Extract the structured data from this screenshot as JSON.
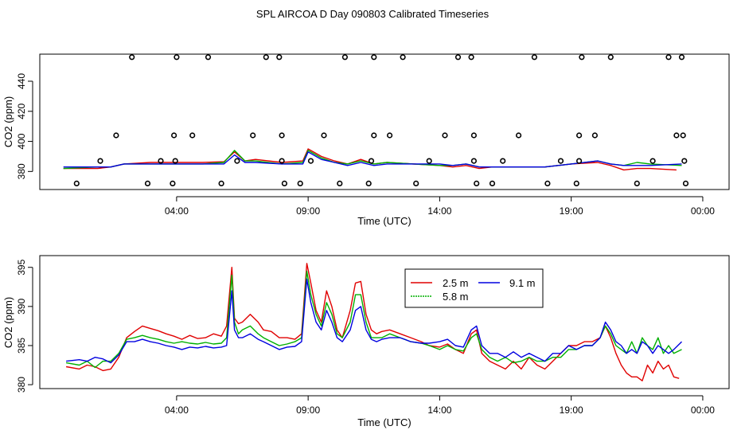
{
  "page_title": "SPL AIRCOA D  Day 090803  Calibrated Timeseries",
  "colors": {
    "series_2_5": "#e00000",
    "series_5_8": "#00b000",
    "series_9_1": "#0000e0",
    "axis": "#000000"
  },
  "chart_data": [
    {
      "type": "scatter+line",
      "title": "SPL AIRCOA D  Day 090803  Calibrated Timeseries",
      "xlabel": "Time (UTC)",
      "ylabel": "CO2 (ppm)",
      "xlim": [
        -1.2,
        25.0
      ],
      "ylim": [
        368,
        458
      ],
      "x_ticks": [
        4,
        9,
        14,
        19,
        24
      ],
      "x_tick_labels": [
        "04:00",
        "09:00",
        "14:00",
        "19:00",
        "00:00"
      ],
      "y_ticks": [
        380,
        400,
        420,
        440
      ],
      "y_tick_labels": [
        "380",
        "400",
        "420",
        "440"
      ],
      "points": [
        [
          0.2,
          372
        ],
        [
          1.1,
          387
        ],
        [
          1.7,
          404
        ],
        [
          2.3,
          456
        ],
        [
          2.9,
          372
        ],
        [
          3.4,
          387
        ],
        [
          3.85,
          372
        ],
        [
          3.9,
          404
        ],
        [
          3.95,
          387
        ],
        [
          4.0,
          456
        ],
        [
          4.6,
          404
        ],
        [
          5.2,
          456
        ],
        [
          5.7,
          372
        ],
        [
          6.3,
          387
        ],
        [
          6.9,
          404
        ],
        [
          7.4,
          456
        ],
        [
          7.9,
          456
        ],
        [
          8.0,
          404
        ],
        [
          8.0,
          387
        ],
        [
          8.1,
          372
        ],
        [
          8.7,
          372
        ],
        [
          9.1,
          387
        ],
        [
          9.6,
          404
        ],
        [
          10.2,
          372
        ],
        [
          10.4,
          456
        ],
        [
          11.3,
          372
        ],
        [
          11.4,
          387
        ],
        [
          11.5,
          456
        ],
        [
          11.5,
          404
        ],
        [
          12.1,
          404
        ],
        [
          12.6,
          456
        ],
        [
          13.1,
          372
        ],
        [
          13.6,
          387
        ],
        [
          14.2,
          404
        ],
        [
          14.7,
          456
        ],
        [
          15.2,
          456
        ],
        [
          15.3,
          404
        ],
        [
          15.3,
          387
        ],
        [
          15.4,
          372
        ],
        [
          16.0,
          372
        ],
        [
          16.4,
          387
        ],
        [
          17.0,
          404
        ],
        [
          17.6,
          456
        ],
        [
          18.1,
          372
        ],
        [
          18.6,
          387
        ],
        [
          19.2,
          372
        ],
        [
          19.3,
          387
        ],
        [
          19.3,
          404
        ],
        [
          19.4,
          456
        ],
        [
          19.9,
          404
        ],
        [
          20.5,
          456
        ],
        [
          21.5,
          372
        ],
        [
          22.1,
          387
        ],
        [
          22.7,
          456
        ],
        [
          23.0,
          404
        ],
        [
          23.2,
          456
        ],
        [
          23.25,
          404
        ],
        [
          23.3,
          387
        ],
        [
          23.35,
          372
        ]
      ],
      "series": [
        {
          "name": "2.5 m",
          "color": "#e00000",
          "x": [
            -0.3,
            1,
            1.5,
            2,
            3,
            4,
            5,
            5.8,
            6.2,
            6.6,
            7,
            8,
            8.8,
            9,
            9.5,
            10,
            10.5,
            11,
            11.5,
            12,
            13,
            14,
            14.5,
            15,
            15.5,
            16,
            17,
            18,
            19,
            20,
            20.5,
            21,
            21.5,
            22,
            23
          ],
          "y": [
            382,
            382,
            383,
            385,
            386,
            386,
            386,
            386.5,
            393,
            387,
            388,
            386,
            387,
            395,
            390,
            387,
            385,
            388,
            385,
            386,
            385,
            384,
            383,
            384,
            382,
            383,
            383,
            383,
            385,
            386,
            384,
            381,
            382,
            382,
            381
          ]
        },
        {
          "name": "5.8 m",
          "color": "#00b000",
          "x": [
            -0.3,
            1,
            1.5,
            2,
            3,
            4,
            5,
            5.8,
            6.2,
            6.6,
            7,
            8,
            8.8,
            9,
            9.5,
            10,
            10.5,
            11,
            11.5,
            12,
            13,
            14,
            14.5,
            15,
            15.5,
            16,
            17,
            18,
            19,
            20,
            20.5,
            21,
            21.5,
            22,
            23.2
          ],
          "y": [
            382,
            383,
            383,
            385,
            385,
            385,
            385,
            386,
            394,
            387,
            387,
            385,
            386,
            394,
            389,
            386,
            385,
            387,
            385,
            386,
            385,
            384,
            384,
            385,
            383,
            383,
            383,
            383,
            385,
            387,
            385,
            384,
            386,
            385,
            384
          ]
        },
        {
          "name": "9.1 m",
          "color": "#0000e0",
          "x": [
            -0.3,
            1,
            1.5,
            2,
            3,
            4,
            5,
            5.8,
            6.2,
            6.6,
            7,
            8,
            8.8,
            9,
            9.5,
            10,
            10.5,
            11,
            11.5,
            12,
            13,
            14,
            14.5,
            15,
            15.5,
            16,
            17,
            18,
            19,
            20,
            20.5,
            21,
            21.5,
            22,
            23.2
          ],
          "y": [
            383,
            383,
            383,
            385,
            385,
            385,
            385,
            385,
            391,
            386,
            386,
            385,
            385,
            393,
            388,
            386,
            384,
            386,
            384,
            385,
            385,
            385,
            384,
            385,
            383,
            383,
            383,
            383,
            385,
            387,
            385,
            384,
            384,
            384,
            385
          ]
        }
      ]
    },
    {
      "type": "line",
      "xlabel": "Time (UTC)",
      "ylabel": "CO2 (ppm)",
      "xlim": [
        -1.2,
        25.0
      ],
      "ylim": [
        379.5,
        396.5
      ],
      "x_ticks": [
        4,
        9,
        14,
        19,
        24
      ],
      "x_tick_labels": [
        "04:00",
        "09:00",
        "14:00",
        "19:00",
        "00:00"
      ],
      "y_ticks": [
        380,
        385,
        390,
        395
      ],
      "y_tick_labels": [
        "380",
        "385",
        "390",
        "395"
      ],
      "legend": {
        "position": "top-center",
        "entries": [
          "2.5 m",
          "9.1 m",
          "5.8 m"
        ]
      },
      "series": [
        {
          "name": "2.5 m",
          "color": "#e00000",
          "x": [
            -0.2,
            0.3,
            0.6,
            0.9,
            1.2,
            1.5,
            1.8,
            2.1,
            2.4,
            2.7,
            3.0,
            3.3,
            3.6,
            3.9,
            4.2,
            4.5,
            4.8,
            5.1,
            5.4,
            5.7,
            5.9,
            6.1,
            6.2,
            6.35,
            6.5,
            6.8,
            7.1,
            7.3,
            7.6,
            7.9,
            8.2,
            8.5,
            8.75,
            8.95,
            9.1,
            9.3,
            9.5,
            9.7,
            9.9,
            10.1,
            10.3,
            10.6,
            10.8,
            11.0,
            11.2,
            11.4,
            11.6,
            11.8,
            12.1,
            12.5,
            12.9,
            13.3,
            13.6,
            14.0,
            14.3,
            14.6,
            14.9,
            15.2,
            15.4,
            15.6,
            15.9,
            16.2,
            16.5,
            16.8,
            17.1,
            17.4,
            17.7,
            18.0,
            18.3,
            18.6,
            18.9,
            19.2,
            19.5,
            19.8,
            20.1,
            20.3,
            20.5,
            20.7,
            20.9,
            21.1,
            21.3,
            21.5,
            21.7,
            21.9,
            22.1,
            22.3,
            22.5,
            22.7,
            22.9,
            23.1
          ],
          "y": [
            382.3,
            382.0,
            382.5,
            382.3,
            381.8,
            382.0,
            383.5,
            386.0,
            386.8,
            387.5,
            387.2,
            386.9,
            386.5,
            386.2,
            385.8,
            386.3,
            385.9,
            386.0,
            386.5,
            386.2,
            387.5,
            395.0,
            388.5,
            387.8,
            388.0,
            389.0,
            388.0,
            387.0,
            386.8,
            386.0,
            386.0,
            385.8,
            386.5,
            395.5,
            393.0,
            389.5,
            388.0,
            392.0,
            390.0,
            387.0,
            386.0,
            389.5,
            393.0,
            393.2,
            389.0,
            387.0,
            386.5,
            386.8,
            387.0,
            386.5,
            386.0,
            385.5,
            385.0,
            384.8,
            385.2,
            384.5,
            384.0,
            386.5,
            387.0,
            384.0,
            383.0,
            382.5,
            382.0,
            383.0,
            382.0,
            383.5,
            382.5,
            382.0,
            383.0,
            384.0,
            385.0,
            385.0,
            385.5,
            385.5,
            386.0,
            387.5,
            386.0,
            384.0,
            382.5,
            381.5,
            381.0,
            381.0,
            380.5,
            382.5,
            381.5,
            383.0,
            382.0,
            382.5,
            381.0,
            380.8
          ]
        },
        {
          "name": "5.8 m",
          "color": "#00b000",
          "x": [
            -0.2,
            0.3,
            0.6,
            0.9,
            1.2,
            1.5,
            1.8,
            2.1,
            2.4,
            2.7,
            3.0,
            3.3,
            3.6,
            3.9,
            4.2,
            4.5,
            4.8,
            5.1,
            5.4,
            5.7,
            5.9,
            6.1,
            6.2,
            6.35,
            6.5,
            6.8,
            7.1,
            7.3,
            7.6,
            7.9,
            8.2,
            8.5,
            8.75,
            8.95,
            9.1,
            9.3,
            9.5,
            9.7,
            9.9,
            10.1,
            10.3,
            10.6,
            10.8,
            11.0,
            11.2,
            11.4,
            11.6,
            11.8,
            12.1,
            12.5,
            12.9,
            13.3,
            13.6,
            14.0,
            14.3,
            14.6,
            14.9,
            15.2,
            15.4,
            15.6,
            15.9,
            16.2,
            16.5,
            16.8,
            17.1,
            17.4,
            17.7,
            18.0,
            18.3,
            18.6,
            18.9,
            19.2,
            19.5,
            19.8,
            20.1,
            20.3,
            20.5,
            20.7,
            20.9,
            21.1,
            21.3,
            21.5,
            21.7,
            21.9,
            22.1,
            22.3,
            22.5,
            22.7,
            22.9,
            23.2
          ],
          "y": [
            382.8,
            382.5,
            383.0,
            382.2,
            383.0,
            383.0,
            384.0,
            385.8,
            386.0,
            386.3,
            386.0,
            385.8,
            385.5,
            385.3,
            385.5,
            385.3,
            385.2,
            385.4,
            385.2,
            385.3,
            386.0,
            394.0,
            388.0,
            386.5,
            387.0,
            387.5,
            386.5,
            386.0,
            385.5,
            385.0,
            385.2,
            385.5,
            386.0,
            394.5,
            391.5,
            389.0,
            387.5,
            390.5,
            389.0,
            386.5,
            386.0,
            388.0,
            391.5,
            391.5,
            388.0,
            386.0,
            386.0,
            386.0,
            386.5,
            386.0,
            385.5,
            385.3,
            385.0,
            384.5,
            385.0,
            384.5,
            384.3,
            386.0,
            386.5,
            384.5,
            383.5,
            383.0,
            383.5,
            382.8,
            383.0,
            383.5,
            383.0,
            383.0,
            383.5,
            383.5,
            384.5,
            384.5,
            385.0,
            385.0,
            386.0,
            387.5,
            386.5,
            385.0,
            384.5,
            384.0,
            385.5,
            384.0,
            386.0,
            385.0,
            384.5,
            386.0,
            384.0,
            385.0,
            384.0,
            384.5
          ]
        },
        {
          "name": "9.1 m",
          "color": "#0000e0",
          "x": [
            -0.2,
            0.3,
            0.6,
            0.9,
            1.2,
            1.5,
            1.8,
            2.1,
            2.4,
            2.7,
            3.0,
            3.3,
            3.6,
            3.9,
            4.2,
            4.5,
            4.8,
            5.1,
            5.4,
            5.7,
            5.9,
            6.1,
            6.2,
            6.35,
            6.5,
            6.8,
            7.1,
            7.3,
            7.6,
            7.9,
            8.2,
            8.5,
            8.75,
            8.95,
            9.1,
            9.3,
            9.5,
            9.7,
            9.9,
            10.1,
            10.3,
            10.6,
            10.8,
            11.0,
            11.2,
            11.4,
            11.6,
            11.8,
            12.1,
            12.5,
            12.9,
            13.3,
            13.6,
            14.0,
            14.3,
            14.6,
            14.9,
            15.2,
            15.4,
            15.6,
            15.9,
            16.2,
            16.5,
            16.8,
            17.1,
            17.4,
            17.7,
            18.0,
            18.3,
            18.6,
            18.9,
            19.2,
            19.5,
            19.8,
            20.1,
            20.3,
            20.5,
            20.7,
            20.9,
            21.1,
            21.3,
            21.5,
            21.7,
            21.9,
            22.1,
            22.3,
            22.5,
            22.7,
            22.9,
            23.2
          ],
          "y": [
            383.0,
            383.2,
            383.0,
            383.5,
            383.3,
            382.8,
            383.8,
            385.5,
            385.5,
            385.8,
            385.5,
            385.3,
            385.0,
            384.8,
            384.5,
            384.8,
            384.7,
            384.9,
            384.7,
            384.8,
            385.0,
            392.0,
            387.0,
            386.0,
            386.0,
            386.5,
            385.8,
            385.5,
            385.0,
            384.5,
            384.8,
            384.9,
            385.5,
            393.5,
            390.5,
            388.0,
            387.0,
            389.5,
            388.0,
            386.0,
            385.5,
            387.0,
            389.5,
            390.0,
            387.0,
            385.8,
            385.5,
            385.8,
            386.0,
            386.0,
            385.5,
            385.3,
            385.3,
            385.5,
            385.8,
            385.0,
            384.8,
            387.0,
            387.5,
            385.0,
            384.0,
            384.0,
            383.5,
            384.2,
            383.5,
            384.0,
            383.5,
            383.0,
            384.0,
            384.0,
            385.0,
            384.5,
            385.0,
            385.0,
            386.0,
            388.0,
            387.0,
            385.5,
            385.0,
            384.0,
            384.5,
            384.0,
            385.5,
            385.0,
            384.0,
            385.0,
            384.5,
            384.0,
            384.5,
            385.5
          ]
        }
      ]
    }
  ]
}
